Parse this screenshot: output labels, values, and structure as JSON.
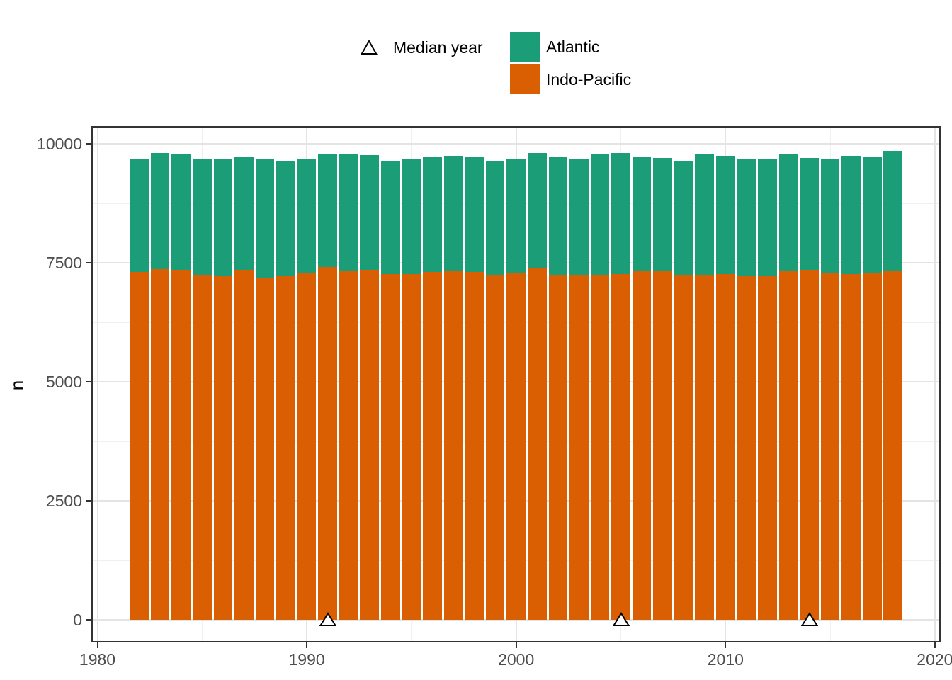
{
  "figure": {
    "ylabel": "n",
    "background": "#ffffff",
    "panel_border_color": "#333333",
    "grid_major_color": "#e4e4e4",
    "grid_minor_color": "#f0f0f0",
    "tick_text_color": "#4d4d4d"
  },
  "chart_data": {
    "type": "bar",
    "stacked": true,
    "title": "",
    "xlabel": "",
    "ylabel": "n",
    "legend_position": "top",
    "grid": true,
    "x": [
      1982,
      1983,
      1984,
      1985,
      1986,
      1987,
      1988,
      1989,
      1990,
      1991,
      1992,
      1993,
      1994,
      1995,
      1996,
      1997,
      1998,
      1999,
      2000,
      2001,
      2002,
      2003,
      2004,
      2005,
      2006,
      2007,
      2008,
      2009,
      2010,
      2011,
      2012,
      2013,
      2014,
      2015,
      2016,
      2017,
      2018
    ],
    "series": [
      {
        "name": "Atlantic",
        "color": "#1b9e77",
        "values": [
          2370,
          2430,
          2420,
          2440,
          2460,
          2370,
          2490,
          2430,
          2400,
          2380,
          2460,
          2410,
          2390,
          2420,
          2400,
          2420,
          2410,
          2400,
          2410,
          2420,
          2490,
          2440,
          2540,
          2540,
          2370,
          2370,
          2410,
          2520,
          2480,
          2460,
          2460,
          2440,
          2350,
          2410,
          2480,
          2440,
          2510
        ]
      },
      {
        "name": "Indo-Pacific",
        "color": "#d95f02",
        "values": [
          7310,
          7370,
          7350,
          7240,
          7230,
          7350,
          7180,
          7210,
          7290,
          7410,
          7330,
          7350,
          7260,
          7260,
          7310,
          7330,
          7310,
          7250,
          7280,
          7380,
          7240,
          7240,
          7240,
          7260,
          7340,
          7330,
          7240,
          7250,
          7260,
          7220,
          7230,
          7330,
          7350,
          7280,
          7260,
          7290,
          7340
        ]
      }
    ],
    "stack_bottom_to_top": [
      "Indo-Pacific",
      "Atlantic"
    ],
    "median_label": "Median year",
    "median_years": [
      1991,
      2005,
      2014
    ],
    "median_marker": {
      "shape": "triangle-up",
      "fill": "#ffffff",
      "stroke": "#000000"
    },
    "xlim": [
      1979.7,
      2020.3
    ],
    "ylim": [
      0,
      10000
    ],
    "x_ticks": [
      1980,
      1990,
      2000,
      2010,
      2020
    ],
    "x_tick_labels": [
      "1980",
      "1990",
      "2000",
      "2010",
      "2020"
    ],
    "x_minor_ticks": [
      1985,
      1995,
      2005,
      2015
    ],
    "y_ticks": [
      0,
      2500,
      5000,
      7500,
      10000
    ],
    "y_tick_labels": [
      "0",
      "2500",
      "5000",
      "7500",
      "10000"
    ],
    "y_minor_ticks": [
      1250,
      3750,
      6250,
      8750
    ],
    "bar_width_years": 0.9
  }
}
